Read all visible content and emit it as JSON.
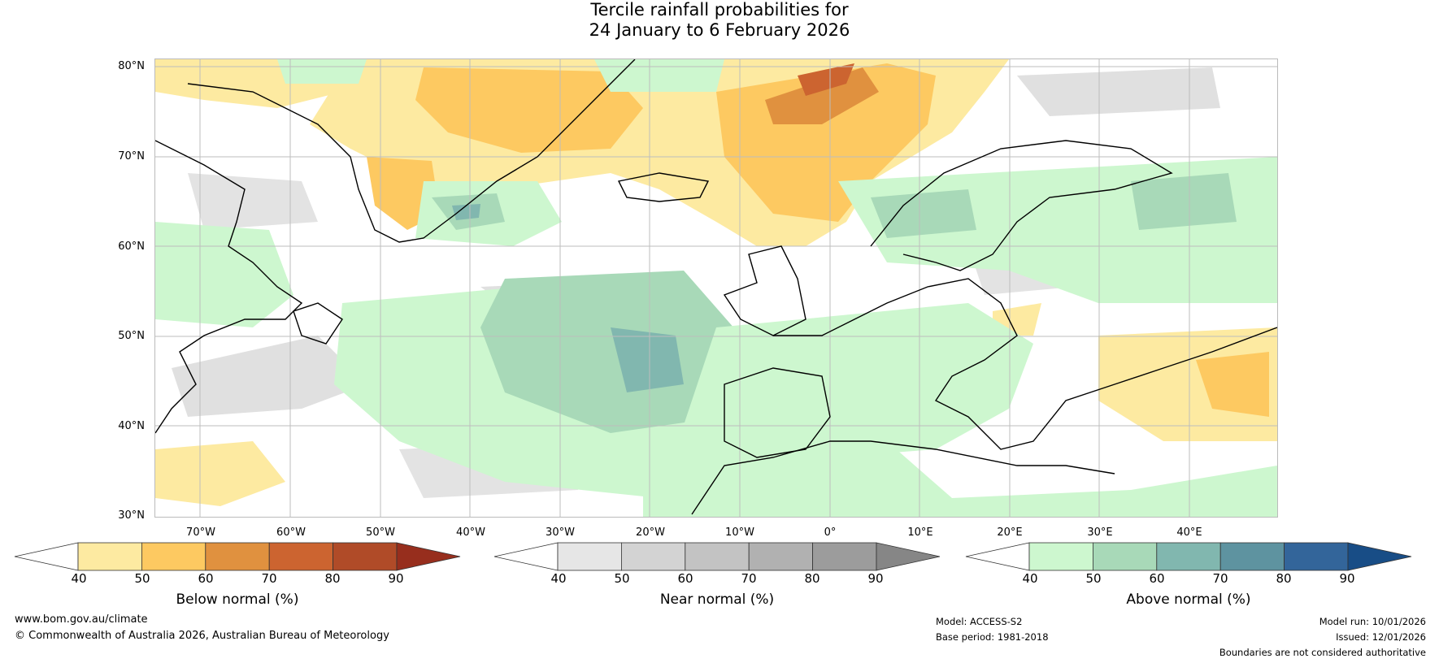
{
  "title": {
    "line1": "Tercile rainfall probabilities for",
    "line2": "24 January to 6 February 2026"
  },
  "map": {
    "lat_labels": [
      "80°N",
      "70°N",
      "60°N",
      "50°N",
      "40°N",
      "30°N"
    ],
    "lon_labels": [
      "70°W",
      "60°W",
      "50°W",
      "40°W",
      "30°W",
      "20°W",
      "10°W",
      "0°",
      "10°E",
      "20°E",
      "30°E",
      "40°E"
    ]
  },
  "legends": [
    {
      "id": "below",
      "title": "Below normal (%)",
      "ticks": [
        "40",
        "50",
        "60",
        "70",
        "80",
        "90"
      ],
      "colors": [
        "#fdeaa1",
        "#fdc961",
        "#e0913f",
        "#cc6430",
        "#b04b28",
        "#972e1d"
      ]
    },
    {
      "id": "near",
      "title": "Near normal (%)",
      "ticks": [
        "40",
        "50",
        "60",
        "70",
        "80",
        "90"
      ],
      "colors": [
        "#e6e6e6",
        "#d3d3d3",
        "#c3c3c3",
        "#b1b1b1",
        "#9c9c9c",
        "#868686"
      ]
    },
    {
      "id": "above",
      "title": "Above normal (%)",
      "ticks": [
        "40",
        "50",
        "60",
        "70",
        "80",
        "90"
      ],
      "colors": [
        "#cdf7cf",
        "#a8d9b8",
        "#81b7af",
        "#5e93a0",
        "#33659a",
        "#184d86"
      ]
    }
  ],
  "footer": {
    "website": "www.bom.gov.au/climate",
    "copyright": "© Commonwealth of Australia 2026, Australian Bureau of Meteorology",
    "model": "Model: ACCESS-S2",
    "base_period": "Base period: 1981-2018",
    "model_run": "Model run: 10/01/2026",
    "issued": "Issued: 12/01/2026",
    "disclaimer": "Boundaries are not considered authoritative"
  }
}
